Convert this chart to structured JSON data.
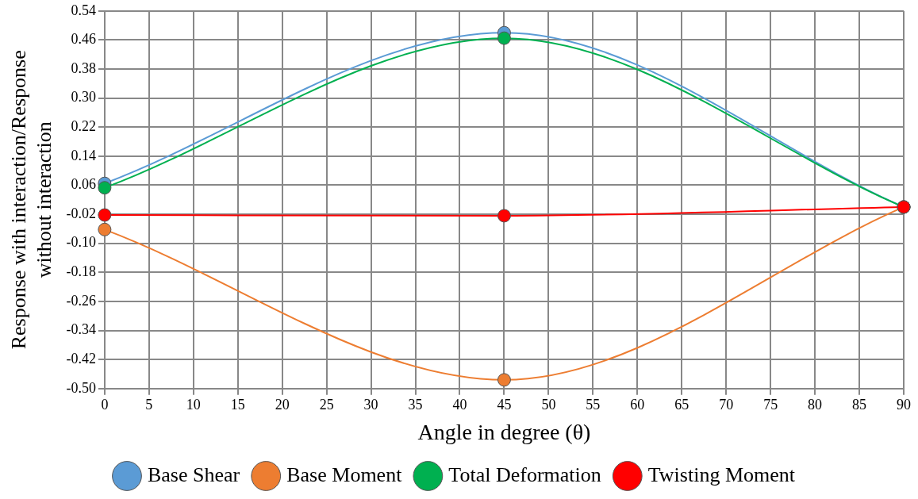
{
  "chart_data": {
    "type": "line",
    "xlabel": "Angle in degree (θ)",
    "ylabel": "Response with interaction/Response without interaction",
    "x": [
      0,
      45,
      90
    ],
    "series": [
      {
        "name": "Base Shear",
        "color": "#5b9bd5",
        "values": [
          0.065,
          0.48,
          0.0
        ]
      },
      {
        "name": "Base Moment",
        "color": "#ed7d31",
        "values": [
          -0.062,
          -0.476,
          0.0
        ]
      },
      {
        "name": "Total Deformation",
        "color": "#00b050",
        "values": [
          0.053,
          0.465,
          0.0
        ]
      },
      {
        "name": "Twisting Moment",
        "color": "#ff0000",
        "values": [
          -0.022,
          -0.024,
          0.0
        ]
      }
    ],
    "xlim": [
      0,
      90
    ],
    "xticks": [
      0,
      5,
      10,
      15,
      20,
      25,
      30,
      35,
      40,
      45,
      50,
      55,
      60,
      65,
      70,
      75,
      80,
      85,
      90
    ],
    "ylim": [
      -0.5,
      0.54
    ],
    "yticks": [
      {
        "value": -0.5,
        "label": "-0.50"
      },
      {
        "value": -0.42,
        "label": "-0.42"
      },
      {
        "value": -0.34,
        "label": "-0.34"
      },
      {
        "value": -0.26,
        "label": "-0.26"
      },
      {
        "value": -0.18,
        "label": "-0.18"
      },
      {
        "value": -0.1,
        "label": "-0.10"
      },
      {
        "value": -0.02,
        "label": "-0.02"
      },
      {
        "value": 0.06,
        "label": "0.06"
      },
      {
        "value": 0.14,
        "label": "0.14"
      },
      {
        "value": 0.22,
        "label": "0.22"
      },
      {
        "value": 0.3,
        "label": "0.30"
      },
      {
        "value": 0.38,
        "label": "0.38"
      },
      {
        "value": 0.46,
        "label": "0.46"
      },
      {
        "value": 0.54,
        "label": "0.54"
      }
    ],
    "grid": true,
    "legend": "bottom",
    "marker": "circle",
    "line_style": "solid"
  }
}
